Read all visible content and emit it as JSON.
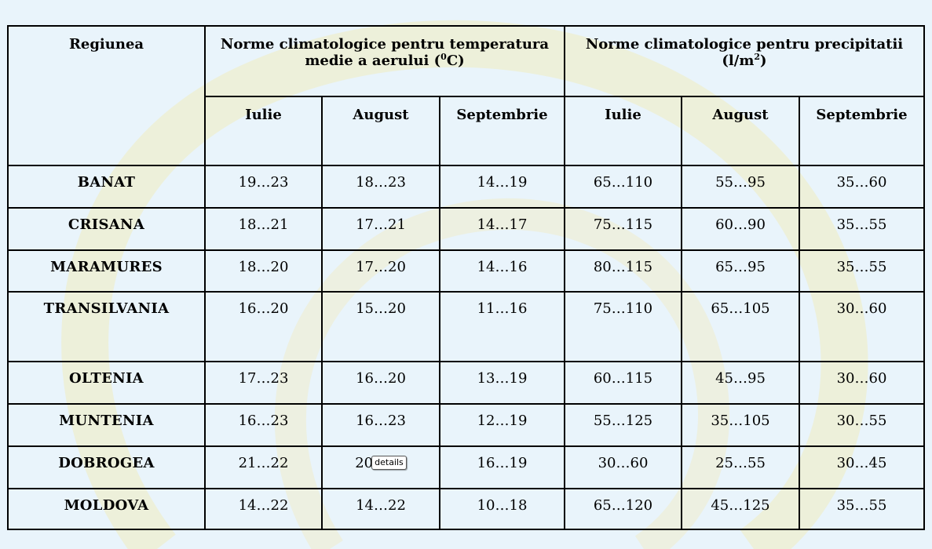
{
  "table": {
    "header": {
      "region": "Regiunea",
      "temp_group": "Norme climatologice pentru temperatura medie  a aerului (",
      "temp_unit_sup": "0",
      "temp_unit_tail": "C)",
      "prec_group": "Norme climatologice pentru precipitatii (l/m",
      "prec_unit_sup": "2",
      "prec_unit_tail": ")",
      "months": [
        "Iulie",
        "August",
        "Septembrie",
        "Iulie",
        "August",
        "Septembrie"
      ]
    },
    "rows": [
      {
        "region": "BANAT",
        "values": [
          "19…23",
          "18…23",
          "14…19",
          "65…110",
          "55…95",
          "35…60"
        ]
      },
      {
        "region": "CRISANA",
        "values": [
          "18…21",
          "17…21",
          "14…17",
          "75…115",
          "60…90",
          "35…55"
        ]
      },
      {
        "region": "MARAMURES",
        "values": [
          "18…20",
          "17…20",
          "14…16",
          "80…115",
          "65…95",
          "35…55"
        ]
      },
      {
        "region": "TRANSILVANIA",
        "values": [
          "16…20",
          "15…20",
          "11…16",
          "75…110",
          "65…105",
          "30…60"
        ]
      },
      {
        "region": "OLTENIA",
        "values": [
          "17…23",
          "16…20",
          "13…19",
          "60…115",
          "45…95",
          "30…60"
        ]
      },
      {
        "region": "MUNTENIA",
        "values": [
          "16…23",
          "16…23",
          "12…19",
          "55…125",
          "35…105",
          "30…55"
        ]
      },
      {
        "region": "DOBROGEA",
        "values": [
          "21…22",
          "20",
          "16…19",
          "30…60",
          "25…55",
          "30…45"
        ]
      },
      {
        "region": "MOLDOVA",
        "values": [
          "14…22",
          "14…22",
          "10…18",
          "65…120",
          "45…125",
          "35…55"
        ]
      }
    ]
  },
  "tooltip": {
    "label": "details"
  },
  "colors": {
    "background": "#e9f4fb",
    "border": "#000000",
    "decoration": "#f3efc6"
  }
}
